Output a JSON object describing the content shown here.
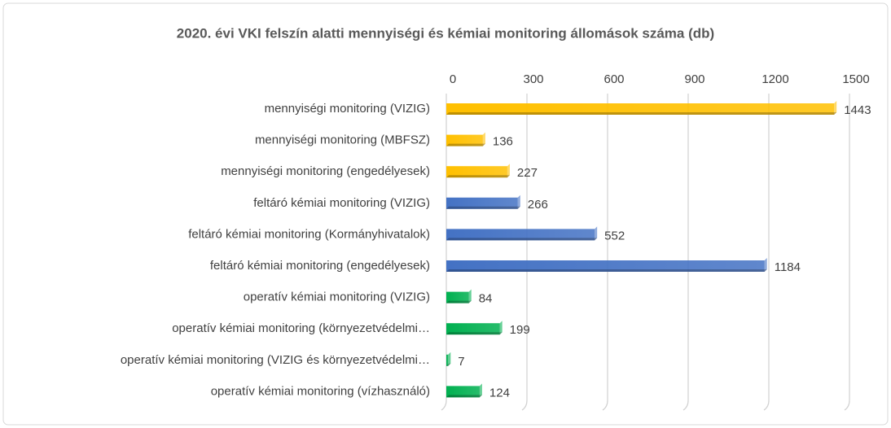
{
  "chart_data": {
    "type": "bar",
    "orientation": "horizontal",
    "title": "2020. évi VKI felszín alatti  mennyiségi és kémiai monitoring állomások száma (db)",
    "categories": [
      "mennyiségi monitoring (VIZIG)",
      "mennyiségi monitoring (MBFSZ)",
      "mennyiségi monitoring (engedélyesek)",
      "feltáró kémiai monitoring (VIZIG)",
      "feltáró kémiai monitoring (Kormányhivatalok)",
      "feltáró kémiai monitoring (engedélyesek)",
      "operatív kémiai monitoring (VIZIG)",
      "operatív kémiai monitoring (környezetvédelmi…",
      "operatív kémiai monitoring (VIZIG és környezetvédelmi…",
      "operatív kémiai monitoring (vízhasználó)"
    ],
    "values": [
      1443,
      136,
      227,
      266,
      552,
      1184,
      84,
      199,
      7,
      124
    ],
    "colors": [
      "#ffc000",
      "#ffc000",
      "#ffc000",
      "#4472c4",
      "#4472c4",
      "#4472c4",
      "#00b050",
      "#00b050",
      "#00b050",
      "#00b050"
    ],
    "xlim": [
      0,
      1500
    ],
    "xticks": [
      0,
      300,
      600,
      900,
      1200,
      1500
    ],
    "grid": true
  }
}
